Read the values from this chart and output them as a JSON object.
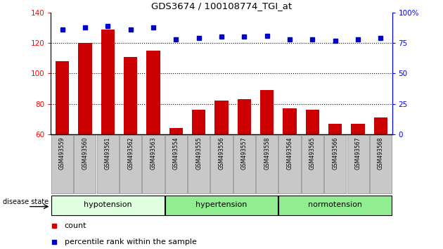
{
  "title": "GDS3674 / 100108774_TGI_at",
  "samples": [
    "GSM493559",
    "GSM493560",
    "GSM493561",
    "GSM493562",
    "GSM493563",
    "GSM493554",
    "GSM493555",
    "GSM493556",
    "GSM493557",
    "GSM493558",
    "GSM493564",
    "GSM493565",
    "GSM493566",
    "GSM493567",
    "GSM493568"
  ],
  "counts": [
    108,
    120,
    129,
    111,
    115,
    64,
    76,
    82,
    83,
    89,
    77,
    76,
    67,
    67,
    71
  ],
  "percentiles": [
    86,
    88,
    89,
    86,
    88,
    78,
    79,
    80,
    80,
    81,
    78,
    78,
    77,
    78,
    79
  ],
  "ylim_left": [
    60,
    140
  ],
  "ylim_right": [
    0,
    100
  ],
  "yticks_left": [
    60,
    80,
    100,
    120,
    140
  ],
  "yticks_right": [
    0,
    25,
    50,
    75,
    100
  ],
  "bar_color": "#CC0000",
  "dot_color": "#0000CC",
  "tick_bg": "#C8C8C8",
  "group_configs": [
    {
      "label": "hypotension",
      "start": 0,
      "end": 4,
      "color": "#DFFFDF"
    },
    {
      "label": "hypertension",
      "start": 5,
      "end": 9,
      "color": "#90EE90"
    },
    {
      "label": "normotension",
      "start": 10,
      "end": 14,
      "color": "#90EE90"
    }
  ]
}
